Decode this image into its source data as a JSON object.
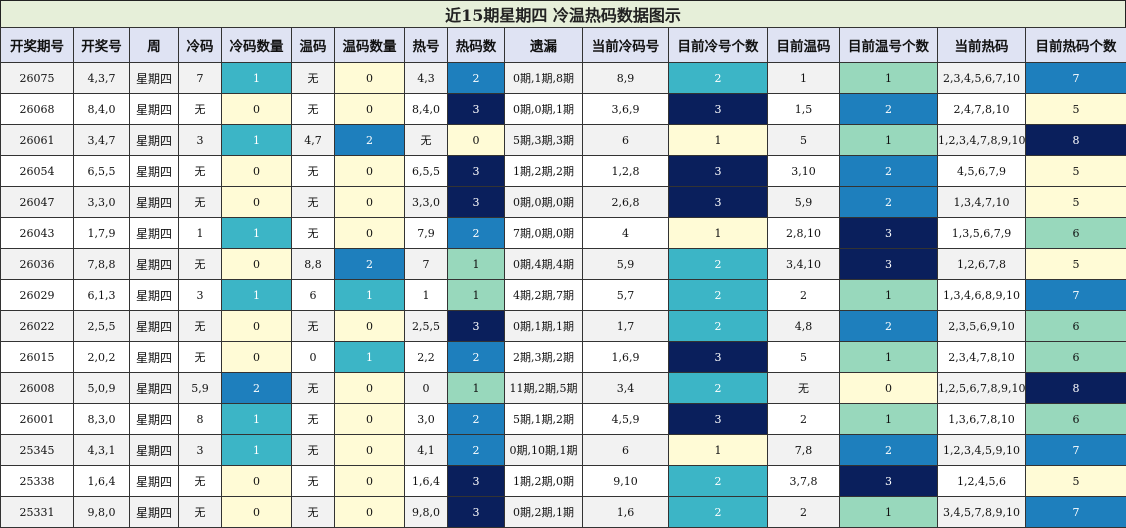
{
  "title": "近15期星期四 冷温热码数据图示",
  "headers": [
    "开奖期号",
    "开奖号",
    "周",
    "冷码",
    "冷码数量",
    "温码",
    "温码数量",
    "热号",
    "热码数",
    "遗漏",
    "当前冷码号",
    "目前冷号个数",
    "目前温码",
    "目前温号个数",
    "当前热码",
    "目前热码个数"
  ],
  "rows": [
    [
      "26075",
      "4,3,7",
      "星期四",
      "7",
      "1",
      "无",
      "0",
      "4,3",
      "2",
      "0期,1期,8期",
      "8,9",
      "2",
      "1",
      "1",
      "2,3,4,5,6,7,10",
      "7"
    ],
    [
      "26068",
      "8,4,0",
      "星期四",
      "无",
      "0",
      "无",
      "0",
      "8,4,0",
      "3",
      "0期,0期,1期",
      "3,6,9",
      "3",
      "1,5",
      "2",
      "2,4,7,8,10",
      "5"
    ],
    [
      "26061",
      "3,4,7",
      "星期四",
      "3",
      "1",
      "4,7",
      "2",
      "无",
      "0",
      "5期,3期,3期",
      "6",
      "1",
      "5",
      "1",
      "1,2,3,4,7,8,9,10",
      "8"
    ],
    [
      "26054",
      "6,5,5",
      "星期四",
      "无",
      "0",
      "无",
      "0",
      "6,5,5",
      "3",
      "1期,2期,2期",
      "1,2,8",
      "3",
      "3,10",
      "2",
      "4,5,6,7,9",
      "5"
    ],
    [
      "26047",
      "3,3,0",
      "星期四",
      "无",
      "0",
      "无",
      "0",
      "3,3,0",
      "3",
      "0期,0期,0期",
      "2,6,8",
      "3",
      "5,9",
      "2",
      "1,3,4,7,10",
      "5"
    ],
    [
      "26043",
      "1,7,9",
      "星期四",
      "1",
      "1",
      "无",
      "0",
      "7,9",
      "2",
      "7期,0期,0期",
      "4",
      "1",
      "2,8,10",
      "3",
      "1,3,5,6,7,9",
      "6"
    ],
    [
      "26036",
      "7,8,8",
      "星期四",
      "无",
      "0",
      "8,8",
      "2",
      "7",
      "1",
      "0期,4期,4期",
      "5,9",
      "2",
      "3,4,10",
      "3",
      "1,2,6,7,8",
      "5"
    ],
    [
      "26029",
      "6,1,3",
      "星期四",
      "3",
      "1",
      "6",
      "1",
      "1",
      "1",
      "4期,2期,7期",
      "5,7",
      "2",
      "2",
      "1",
      "1,3,4,6,8,9,10",
      "7"
    ],
    [
      "26022",
      "2,5,5",
      "星期四",
      "无",
      "0",
      "无",
      "0",
      "2,5,5",
      "3",
      "0期,1期,1期",
      "1,7",
      "2",
      "4,8",
      "2",
      "2,3,5,6,9,10",
      "6"
    ],
    [
      "26015",
      "2,0,2",
      "星期四",
      "无",
      "0",
      "0",
      "1",
      "2,2",
      "2",
      "2期,3期,2期",
      "1,6,9",
      "3",
      "5",
      "1",
      "2,3,4,7,8,10",
      "6"
    ],
    [
      "26008",
      "5,0,9",
      "星期四",
      "5,9",
      "2",
      "无",
      "0",
      "0",
      "1",
      "11期,2期,5期",
      "3,4",
      "2",
      "无",
      "0",
      "1,2,5,6,7,8,9,10",
      "8"
    ],
    [
      "26001",
      "8,3,0",
      "星期四",
      "8",
      "1",
      "无",
      "0",
      "3,0",
      "2",
      "5期,1期,2期",
      "4,5,9",
      "3",
      "2",
      "1",
      "1,3,6,7,8,10",
      "6"
    ],
    [
      "25345",
      "4,3,1",
      "星期四",
      "3",
      "1",
      "无",
      "0",
      "4,1",
      "2",
      "0期,10期,1期",
      "6",
      "1",
      "7,8",
      "2",
      "1,2,3,4,5,9,10",
      "7"
    ],
    [
      "25338",
      "1,6,4",
      "星期四",
      "无",
      "0",
      "无",
      "0",
      "1,6,4",
      "3",
      "1期,2期,0期",
      "9,10",
      "2",
      "3,7,8",
      "3",
      "1,2,4,5,6",
      "5"
    ],
    [
      "25331",
      "9,8,0",
      "星期四",
      "无",
      "0",
      "无",
      "0",
      "9,8,0",
      "3",
      "0期,2期,1期",
      "1,6",
      "2",
      "2",
      "1",
      "3,4,5,7,8,9,10",
      "7"
    ]
  ],
  "colors": {
    "count_0": "#fffbd6",
    "cold_count_1": "#3cb5c6",
    "count_2": "#1e7fbd",
    "count_3": "#0a1f5c",
    "green_1": "#98d8bc",
    "title_bg": "#e6efd9",
    "header_bg": "#dfe3f3"
  }
}
